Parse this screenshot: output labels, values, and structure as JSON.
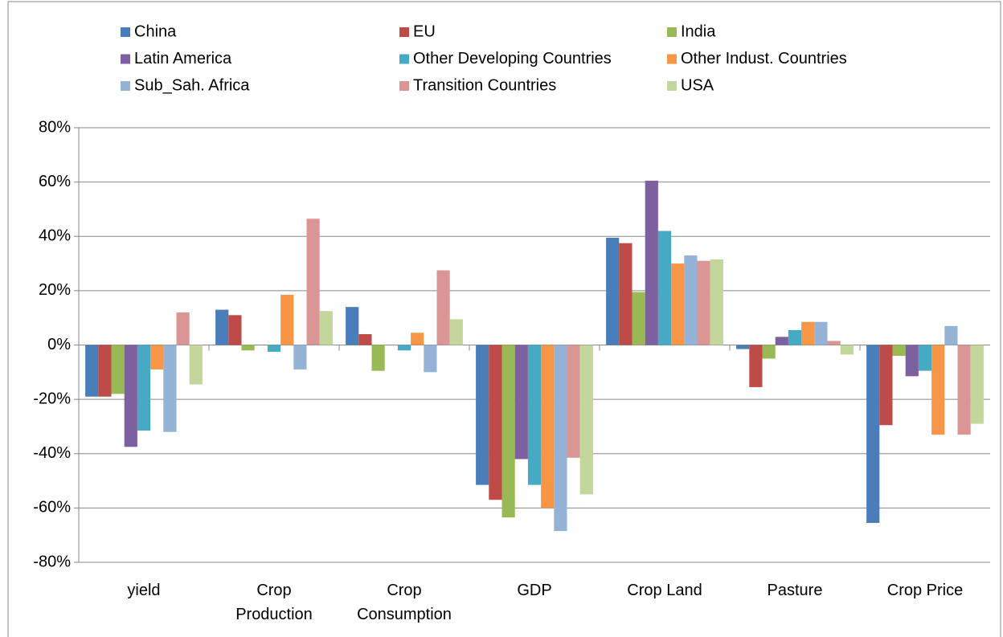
{
  "chart_data": {
    "type": "bar",
    "categories": [
      "yield",
      "Crop Production",
      "Crop Consumption",
      "GDP",
      "Crop Land",
      "Pasture",
      "Crop Price"
    ],
    "series": [
      {
        "name": "China",
        "color": "#4a7ebb",
        "values": [
          -19,
          13,
          14,
          -51.5,
          39.5,
          -1.5,
          -65.5
        ]
      },
      {
        "name": "EU",
        "color": "#be4b48",
        "values": [
          -19,
          11,
          4,
          -57,
          37.5,
          -15.5,
          -29.5
        ]
      },
      {
        "name": "India",
        "color": "#98b954",
        "values": [
          -18,
          -2,
          -9.5,
          -63.5,
          19.5,
          -5,
          -4
        ]
      },
      {
        "name": "Latin America",
        "color": "#7d60a0",
        "values": [
          -37.5,
          0,
          0,
          -42,
          60.5,
          3,
          -11.5
        ]
      },
      {
        "name": "Other Developing Countries",
        "color": "#46aac5",
        "values": [
          -31.5,
          -2.5,
          -2,
          -51.5,
          42,
          5.5,
          -9.5
        ]
      },
      {
        "name": "Other Indust. Countries",
        "color": "#f79646",
        "values": [
          -9,
          18.5,
          4.5,
          -60,
          30,
          8.5,
          -33
        ]
      },
      {
        "name": "Sub_Sah. Africa",
        "color": "#95b3d7",
        "values": [
          -32,
          -9,
          -10,
          -68.5,
          33,
          8.5,
          7
        ]
      },
      {
        "name": "Transition Countries",
        "color": "#d99694",
        "values": [
          12,
          46.5,
          27.5,
          -41.5,
          31,
          1.5,
          -33
        ]
      },
      {
        "name": "USA",
        "color": "#c3d69b",
        "values": [
          -14.5,
          12.5,
          9.5,
          -55,
          31.5,
          -3.5,
          -29
        ]
      }
    ],
    "ylim": [
      -80,
      80
    ],
    "yticks": [
      {
        "value": -80,
        "label": "-80%"
      },
      {
        "value": -60,
        "label": "-60%"
      },
      {
        "value": -40,
        "label": "-40%"
      },
      {
        "value": -20,
        "label": "-20%"
      },
      {
        "value": 0,
        "label": "0%"
      },
      {
        "value": 20,
        "label": "20%"
      },
      {
        "value": 40,
        "label": "40%"
      },
      {
        "value": 60,
        "label": "60%"
      },
      {
        "value": 80,
        "label": "80%"
      }
    ],
    "grid": true,
    "legend": "top"
  }
}
